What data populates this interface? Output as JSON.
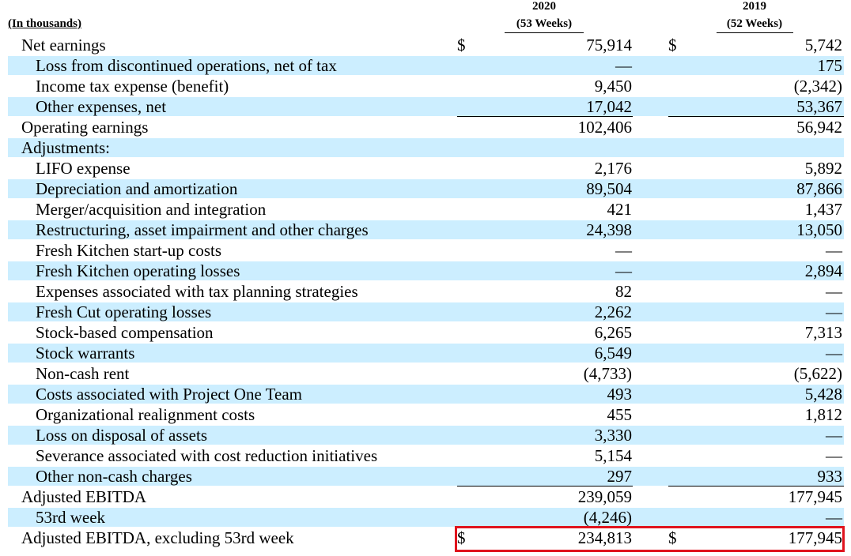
{
  "header": {
    "label": "(In thousands)",
    "col2020_year": "2020",
    "col2020_sub": "(53 Weeks)",
    "col2019_year": "2019",
    "col2019_sub": "(52 Weeks)"
  },
  "rows": [
    {
      "label": "Net earnings",
      "v2020": "75,914",
      "v2019": "5,742",
      "cur2020": "$",
      "cur2019": "$"
    },
    {
      "label": "Loss from discontinued operations, net of tax",
      "v2020": "—",
      "v2019": "175"
    },
    {
      "label": "Income tax expense (benefit)",
      "v2020": "9,450",
      "v2019": "(2,342)"
    },
    {
      "label": "Other expenses, net",
      "v2020": "17,042",
      "v2019": "53,367"
    },
    {
      "label": "Operating earnings",
      "v2020": "102,406",
      "v2019": "56,942"
    },
    {
      "label": "Adjustments:",
      "v2020": "",
      "v2019": ""
    },
    {
      "label": "LIFO expense",
      "v2020": "2,176",
      "v2019": "5,892"
    },
    {
      "label": "Depreciation and amortization",
      "v2020": "89,504",
      "v2019": "87,866"
    },
    {
      "label": "Merger/acquisition and integration",
      "v2020": "421",
      "v2019": "1,437"
    },
    {
      "label": "Restructuring, asset impairment and other charges",
      "v2020": "24,398",
      "v2019": "13,050"
    },
    {
      "label": "Fresh Kitchen start-up costs",
      "v2020": "—",
      "v2019": "—"
    },
    {
      "label": "Fresh Kitchen operating losses",
      "v2020": "—",
      "v2019": "2,894"
    },
    {
      "label": "Expenses associated with tax planning strategies",
      "v2020": "82",
      "v2019": "—"
    },
    {
      "label": "Fresh Cut operating losses",
      "v2020": "2,262",
      "v2019": "—"
    },
    {
      "label": "Stock-based compensation",
      "v2020": "6,265",
      "v2019": "7,313"
    },
    {
      "label": "Stock warrants",
      "v2020": "6,549",
      "v2019": "—"
    },
    {
      "label": "Non-cash rent",
      "v2020": "(4,733)",
      "v2019": "(5,622)"
    },
    {
      "label": "Costs associated with Project One Team",
      "v2020": "493",
      "v2019": "5,428"
    },
    {
      "label": "Organizational realignment costs",
      "v2020": "455",
      "v2019": "1,812"
    },
    {
      "label": "Loss on disposal of assets",
      "v2020": "3,330",
      "v2019": "—"
    },
    {
      "label": "Severance associated with cost reduction initiatives",
      "v2020": "5,154",
      "v2019": "—"
    },
    {
      "label": "Other non-cash charges",
      "v2020": "297",
      "v2019": "933"
    },
    {
      "label": "Adjusted EBITDA",
      "v2020": "239,059",
      "v2019": "177,945"
    },
    {
      "label": "53rd week",
      "v2020": "(4,246)",
      "v2019": "—"
    },
    {
      "label": "Adjusted EBITDA, excluding 53rd week",
      "v2020": "234,813",
      "v2019": "177,945",
      "cur2020": "$",
      "cur2019": "$"
    }
  ],
  "colors": {
    "row_shade": "#cceeff",
    "highlight": "#e0141e"
  }
}
